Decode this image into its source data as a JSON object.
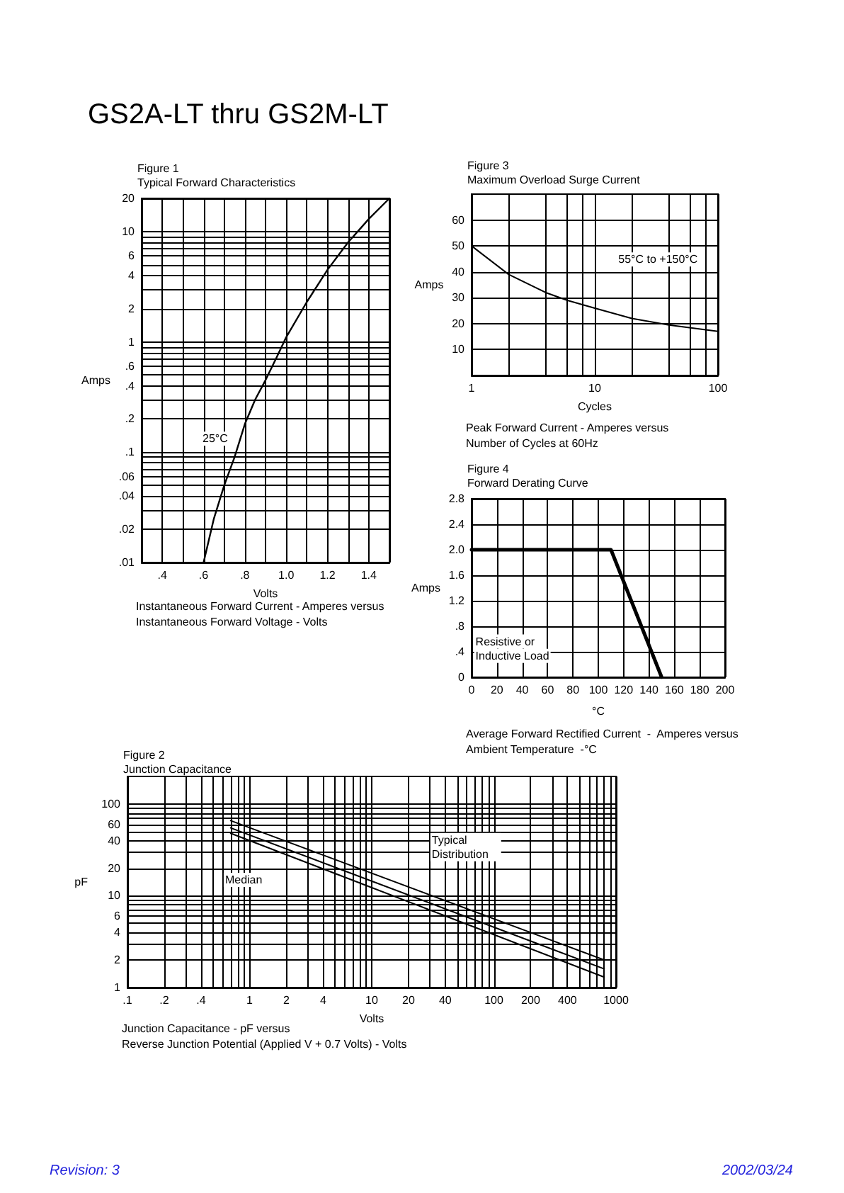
{
  "chart_data": [
    {
      "type": "other",
      "title": "GS2A-LT thru GS2M-LT",
      "annotations": [
        "Revision: 3",
        "2002/03/24"
      ]
    },
    {
      "type": "line",
      "title": "Figure 1",
      "subtitle": "Typical Forward Characteristics",
      "xlabel": "Volts",
      "ylabel": "Amps",
      "log": "y",
      "grid": true,
      "x": [
        0.6,
        0.65,
        0.7,
        0.75,
        0.8,
        0.85,
        0.9,
        0.95,
        1.0,
        1.1,
        1.2,
        1.3,
        1.4,
        1.5
      ],
      "series": [
        {
          "color": "#000000",
          "values": [
            0.01,
            0.025,
            0.05,
            0.09,
            0.18,
            0.3,
            0.45,
            0.7,
            1.1,
            2.3,
            4.5,
            8,
            13,
            20
          ]
        }
      ],
      "xlim": [
        0.3,
        1.5
      ],
      "xticks": [
        {
          "value": 0.3,
          "label": null
        },
        {
          "value": 0.4,
          "label": ".4"
        },
        {
          "value": 0.5,
          "label": null
        },
        {
          "value": 0.6,
          "label": ".6"
        },
        {
          "value": 0.7,
          "label": null
        },
        {
          "value": 0.8,
          "label": ".8"
        },
        {
          "value": 0.9,
          "label": null
        },
        {
          "value": 1.0,
          "label": "1.0"
        },
        {
          "value": 1.1,
          "label": null
        },
        {
          "value": 1.2,
          "label": "1.2"
        },
        {
          "value": 1.3,
          "label": null
        },
        {
          "value": 1.4,
          "label": "1.4"
        },
        {
          "value": 1.5,
          "label": null
        }
      ],
      "ylim": [
        0.01,
        20
      ],
      "yticks": [
        {
          "value": 0.01,
          "label": ".01"
        },
        {
          "value": 0.02,
          "label": ".02"
        },
        {
          "value": 0.03,
          "label": null
        },
        {
          "value": 0.04,
          "label": ".04"
        },
        {
          "value": 0.05,
          "label": null
        },
        {
          "value": 0.06,
          "label": ".06"
        },
        {
          "value": 0.07,
          "label": null
        },
        {
          "value": 0.08,
          "label": null
        },
        {
          "value": 0.09,
          "label": null
        },
        {
          "value": 0.1,
          "label": ".1"
        },
        {
          "value": 0.2,
          "label": ".2"
        },
        {
          "value": 0.3,
          "label": null
        },
        {
          "value": 0.4,
          "label": ".4"
        },
        {
          "value": 0.5,
          "label": null
        },
        {
          "value": 0.6,
          "label": ".6"
        },
        {
          "value": 0.7,
          "label": null
        },
        {
          "value": 0.8,
          "label": null
        },
        {
          "value": 0.9,
          "label": null
        },
        1,
        2,
        {
          "value": 3,
          "label": null
        },
        4,
        {
          "value": 5,
          "label": null
        },
        6,
        {
          "value": 7,
          "label": null
        },
        {
          "value": 8,
          "label": null
        },
        {
          "value": 9,
          "label": null
        },
        10,
        20
      ],
      "annotations": [
        "25°C",
        "Instantaneous Forward Current - Amperes versus",
        "Instantaneous Forward Voltage - Volts"
      ]
    },
    {
      "type": "line",
      "title": "Figure 3",
      "subtitle": "Maximum Overload Surge Current",
      "xlabel": "Cycles",
      "ylabel": "Amps",
      "log": "x",
      "grid": true,
      "x": [
        1,
        2,
        4,
        6,
        10,
        20,
        40,
        100
      ],
      "series": [
        {
          "color": "#000000",
          "values": [
            50,
            39,
            32,
            29,
            26,
            22,
            19.5,
            17
          ]
        }
      ],
      "xlim": [
        1,
        100
      ],
      "xticks": [
        1,
        {
          "value": 2,
          "label": null
        },
        {
          "value": 4,
          "label": null
        },
        {
          "value": 6,
          "label": null
        },
        {
          "value": 8,
          "label": null
        },
        10,
        {
          "value": 20,
          "label": null
        },
        {
          "value": 40,
          "label": null
        },
        {
          "value": 60,
          "label": null
        },
        {
          "value": 80,
          "label": null
        },
        100
      ],
      "ylim": [
        0,
        70
      ],
      "yticks": [
        10,
        20,
        30,
        40,
        50,
        60
      ],
      "annotations": [
        "55°C to +150°C",
        "Peak Forward Current - Amperes versus",
        "Number of Cycles at 60Hz"
      ]
    },
    {
      "type": "line",
      "title": "Figure 4",
      "subtitle": "Forward Derating Curve",
      "xlabel": "°C",
      "ylabel": "Amps",
      "grid": true,
      "x": [
        0,
        110,
        150
      ],
      "series": [
        {
          "color": "#000000",
          "values": [
            2.0,
            2.0,
            0
          ]
        }
      ],
      "xlim": [
        0,
        200
      ],
      "xticks": [
        0,
        20,
        40,
        60,
        80,
        100,
        120,
        140,
        160,
        180,
        200
      ],
      "ylim": [
        0,
        2.8
      ],
      "yticks": [
        0,
        {
          "value": 0.4,
          "label": ".4"
        },
        {
          "value": 0.8,
          "label": ".8"
        },
        1.2,
        1.6,
        {
          "value": 2.0,
          "label": "2.0"
        },
        2.4,
        2.8
      ],
      "annotations": [
        "Resistive or",
        "Inductive Load",
        "Average Forward Rectified Current  -  Amperes versus",
        "Ambient Temperature  -°C"
      ]
    },
    {
      "type": "line",
      "title": "Figure 2",
      "subtitle": "Junction Capacitance",
      "xlabel": "Volts",
      "ylabel": "pF",
      "log": "xy",
      "grid": true,
      "x": [
        0.7,
        800
      ],
      "series": [
        {
          "color": "#000000",
          "values": [
            66,
            2.0
          ]
        },
        {
          "color": "#000000",
          "values": [
            55,
            1.6
          ]
        },
        {
          "color": "#000000",
          "values": [
            48,
            1.3
          ]
        }
      ],
      "xlim": [
        0.1,
        1000
      ],
      "xticks": [
        {
          "value": 0.1,
          "label": ".1"
        },
        {
          "value": 0.2,
          "label": ".2"
        },
        {
          "value": 0.3,
          "label": null
        },
        {
          "value": 0.4,
          "label": ".4"
        },
        {
          "value": 0.5,
          "label": null
        },
        {
          "value": 0.6,
          "label": null
        },
        {
          "value": 0.7,
          "label": null
        },
        {
          "value": 0.8,
          "label": null
        },
        {
          "value": 0.9,
          "label": null
        },
        1,
        2,
        {
          "value": 3,
          "label": null
        },
        4,
        {
          "value": 5,
          "label": null
        },
        {
          "value": 6,
          "label": null
        },
        {
          "value": 7,
          "label": null
        },
        {
          "value": 8,
          "label": null
        },
        {
          "value": 9,
          "label": null
        },
        10,
        20,
        {
          "value": 30,
          "label": null
        },
        40,
        {
          "value": 50,
          "label": null
        },
        {
          "value": 60,
          "label": null
        },
        {
          "value": 70,
          "label": null
        },
        {
          "value": 80,
          "label": null
        },
        {
          "value": 90,
          "label": null
        },
        100,
        200,
        {
          "value": 300,
          "label": null
        },
        400,
        {
          "value": 500,
          "label": null
        },
        {
          "value": 600,
          "label": null
        },
        {
          "value": 700,
          "label": null
        },
        {
          "value": 800,
          "label": null
        },
        {
          "value": 900,
          "label": null
        },
        1000
      ],
      "ylim": [
        1,
        200
      ],
      "yticks": [
        1,
        2,
        {
          "value": 3,
          "label": null
        },
        4,
        {
          "value": 5,
          "label": null
        },
        6,
        {
          "value": 7,
          "label": null
        },
        {
          "value": 8,
          "label": null
        },
        {
          "value": 9,
          "label": null
        },
        10,
        20,
        {
          "value": 30,
          "label": null
        },
        40,
        {
          "value": 50,
          "label": null
        },
        60,
        {
          "value": 70,
          "label": null
        },
        {
          "value": 80,
          "label": null
        },
        {
          "value": 90,
          "label": null
        },
        100
      ],
      "annotations": [
        "Median",
        "Typical Distribution",
        "Junction Capacitance - pF versus",
        "Reverse Junction Potential (Applied V + 0.7 Volts) - Volts"
      ]
    }
  ]
}
